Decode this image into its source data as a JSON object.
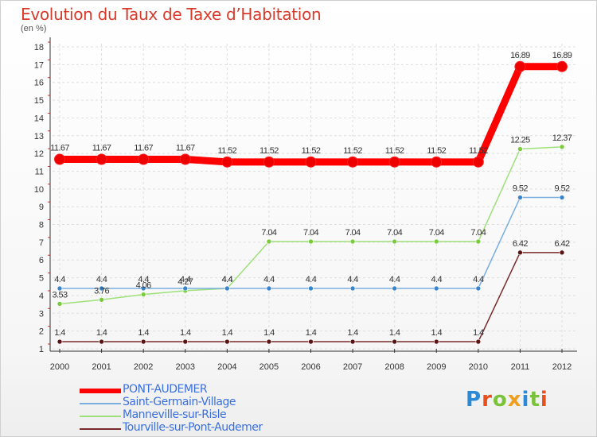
{
  "header": {
    "title": "Evolution du Taux de Taxe d’Habitation",
    "unit": "(en %)"
  },
  "chart_data": {
    "type": "line",
    "title": "Evolution du Taux de Taxe d’Habitation",
    "ylabel": "(en %)",
    "xlabel": "",
    "x": [
      "2000",
      "2001",
      "2002",
      "2003",
      "2004",
      "2005",
      "2006",
      "2007",
      "2008",
      "2009",
      "2010",
      "2011",
      "2012"
    ],
    "ylim": [
      1,
      18
    ],
    "yticks": [
      "1",
      "2",
      "3",
      "4",
      "5",
      "6",
      "7",
      "8",
      "9",
      "10",
      "11",
      "12",
      "13",
      "14",
      "15",
      "16",
      "17",
      "18"
    ],
    "grid": true,
    "legend_position": "bottom-left",
    "series": [
      {
        "name": "Tourville-sur-Pont-Audemer",
        "color": "#7a2a2a",
        "dot": "#5a1414",
        "values": [
          1.4,
          1.4,
          1.4,
          1.4,
          1.4,
          1.4,
          1.4,
          1.4,
          1.4,
          1.4,
          1.4,
          6.42,
          6.42
        ],
        "labels": [
          "1.4",
          "1.4",
          "1.4",
          "1.4",
          "1.4",
          "1.4",
          "1.4",
          "1.4",
          "1.4",
          "1.4",
          "1.4",
          "6.42",
          "6.42"
        ]
      },
      {
        "name": "Manneville-sur-Risle",
        "color": "#9ee07a",
        "dot": "#7acc3a",
        "values": [
          3.53,
          3.76,
          4.06,
          4.27,
          4.4,
          7.04,
          7.04,
          7.04,
          7.04,
          7.04,
          7.04,
          12.25,
          12.37
        ],
        "labels": [
          "3.53",
          "3.76",
          "4.06",
          "4.27",
          "4.4",
          "7.04",
          "7.04",
          "7.04",
          "7.04",
          "7.04",
          "7.04",
          "12.25",
          "12.37"
        ]
      },
      {
        "name": "Saint-Germain-Village",
        "color": "#7aaee0",
        "dot": "#3a84cc",
        "values": [
          4.4,
          4.4,
          4.4,
          4.4,
          4.4,
          4.4,
          4.4,
          4.4,
          4.4,
          4.4,
          4.4,
          9.52,
          9.52
        ],
        "labels": [
          "4.4",
          "4.4",
          "4.4",
          "4.4",
          "4.4",
          "4.4",
          "4.4",
          "4.4",
          "4.4",
          "4.4",
          "4.4",
          "9.52",
          "9.52"
        ]
      },
      {
        "name": "PONT-AUDEMER",
        "color": "#ff0000",
        "dot": "#ee0000",
        "values": [
          11.67,
          11.67,
          11.67,
          11.67,
          11.52,
          11.52,
          11.52,
          11.52,
          11.52,
          11.52,
          11.52,
          16.89,
          16.89
        ],
        "labels": [
          "11.67",
          "11.67",
          "11.67",
          "11.67",
          "11.52",
          "11.52",
          "11.52",
          "11.52",
          "11.52",
          "11.52",
          "11.52",
          "16.89",
          "16.89"
        ]
      }
    ]
  },
  "legend": {
    "items": [
      {
        "label": "PONT-AUDEMER",
        "color": "#ff0000"
      },
      {
        "label": "Saint-Germain-Village",
        "color": "#7aaee0"
      },
      {
        "label": "Manneville-sur-Risle",
        "color": "#9ee07a"
      },
      {
        "label": "Tourville-sur-Pont-Audemer",
        "color": "#7a2a2a"
      }
    ]
  },
  "logo": {
    "letters": [
      "P",
      "r",
      "o",
      "x",
      "i",
      "t",
      "i"
    ],
    "colors": [
      "#2a8ad6",
      "#e8501e",
      "#7ac23a",
      "#f0a020",
      "#2a8ad6",
      "#7ac23a",
      "#e8501e"
    ]
  }
}
